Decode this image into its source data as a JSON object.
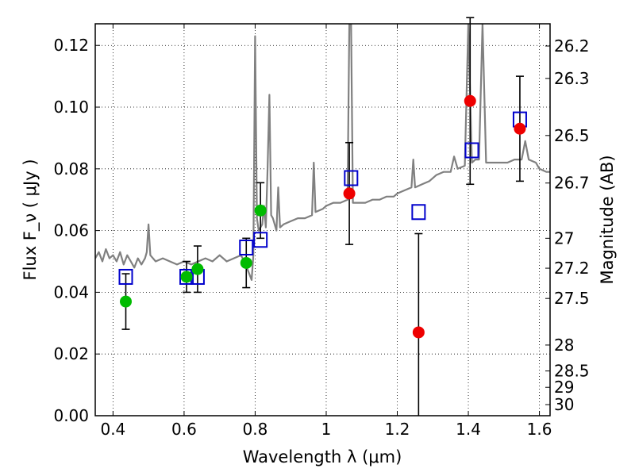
{
  "chart_data": {
    "type": "scatter",
    "xlabel": "Wavelength  λ (μm)",
    "ylabel_left": "Flux  F_ν  ( μJy )",
    "ylabel_right": "Magnitude (AB)",
    "xlim": [
      0.35,
      1.63
    ],
    "ylim": [
      0.0,
      0.127
    ],
    "grid": true,
    "x_ticks": [
      {
        "value": 0.4,
        "label": "0.4"
      },
      {
        "value": 0.6,
        "label": "0.6"
      },
      {
        "value": 0.8,
        "label": "0.8"
      },
      {
        "value": 1.0,
        "label": "1"
      },
      {
        "value": 1.2,
        "label": "1.2"
      },
      {
        "value": 1.4,
        "label": "1.4"
      },
      {
        "value": 1.6,
        "label": "1.6"
      }
    ],
    "y_ticks": [
      {
        "value": 0.0,
        "label": "0.00"
      },
      {
        "value": 0.02,
        "label": "0.02"
      },
      {
        "value": 0.04,
        "label": "0.04"
      },
      {
        "value": 0.06,
        "label": "0.06"
      },
      {
        "value": 0.08,
        "label": "0.08"
      },
      {
        "value": 0.1,
        "label": "0.10"
      },
      {
        "value": 0.12,
        "label": "0.12"
      }
    ],
    "right_ticks": [
      {
        "flux": 0.1198,
        "label": "26.2"
      },
      {
        "flux": 0.1093,
        "label": "26.3"
      },
      {
        "flux": 0.0908,
        "label": "26.5"
      },
      {
        "flux": 0.0754,
        "label": "26.7"
      },
      {
        "flux": 0.0575,
        "label": "27"
      },
      {
        "flux": 0.0478,
        "label": "27.2"
      },
      {
        "flux": 0.038,
        "label": "27.5"
      },
      {
        "flux": 0.0229,
        "label": "28"
      },
      {
        "flux": 0.0145,
        "label": "28.5"
      },
      {
        "flux": 0.0092,
        "label": "29"
      },
      {
        "flux": 0.0036,
        "label": "30"
      }
    ],
    "series": [
      {
        "color": "#808080",
        "points": [
          [
            0.35,
            0.051
          ],
          [
            0.36,
            0.053
          ],
          [
            0.37,
            0.05
          ],
          [
            0.38,
            0.054
          ],
          [
            0.39,
            0.051
          ],
          [
            0.4,
            0.052
          ],
          [
            0.41,
            0.05
          ],
          [
            0.42,
            0.053
          ],
          [
            0.43,
            0.049
          ],
          [
            0.44,
            0.052
          ],
          [
            0.45,
            0.05
          ],
          [
            0.46,
            0.048
          ],
          [
            0.47,
            0.051
          ],
          [
            0.48,
            0.049
          ],
          [
            0.49,
            0.051
          ],
          [
            0.495,
            0.053
          ],
          [
            0.5,
            0.062
          ],
          [
            0.505,
            0.052
          ],
          [
            0.52,
            0.05
          ],
          [
            0.54,
            0.051
          ],
          [
            0.56,
            0.05
          ],
          [
            0.58,
            0.049
          ],
          [
            0.6,
            0.05
          ],
          [
            0.62,
            0.049
          ],
          [
            0.64,
            0.05
          ],
          [
            0.66,
            0.051
          ],
          [
            0.68,
            0.05
          ],
          [
            0.7,
            0.052
          ],
          [
            0.72,
            0.05
          ],
          [
            0.74,
            0.051
          ],
          [
            0.76,
            0.052
          ],
          [
            0.77,
            0.05
          ],
          [
            0.78,
            0.047
          ],
          [
            0.79,
            0.044
          ],
          [
            0.795,
            0.052
          ],
          [
            0.8,
            0.123
          ],
          [
            0.805,
            0.064
          ],
          [
            0.81,
            0.06
          ],
          [
            0.82,
            0.062
          ],
          [
            0.825,
            0.068
          ],
          [
            0.83,
            0.061
          ],
          [
            0.835,
            0.08
          ],
          [
            0.84,
            0.104
          ],
          [
            0.845,
            0.065
          ],
          [
            0.85,
            0.064
          ],
          [
            0.86,
            0.06
          ],
          [
            0.865,
            0.074
          ],
          [
            0.87,
            0.061
          ],
          [
            0.88,
            0.062
          ],
          [
            0.9,
            0.063
          ],
          [
            0.92,
            0.064
          ],
          [
            0.94,
            0.064
          ],
          [
            0.96,
            0.065
          ],
          [
            0.965,
            0.082
          ],
          [
            0.97,
            0.066
          ],
          [
            0.99,
            0.067
          ],
          [
            1.0,
            0.068
          ],
          [
            1.02,
            0.069
          ],
          [
            1.04,
            0.069
          ],
          [
            1.06,
            0.07
          ],
          [
            1.065,
            0.127
          ],
          [
            1.07,
            0.127
          ],
          [
            1.075,
            0.069
          ],
          [
            1.09,
            0.069
          ],
          [
            1.11,
            0.069
          ],
          [
            1.13,
            0.07
          ],
          [
            1.15,
            0.07
          ],
          [
            1.17,
            0.071
          ],
          [
            1.19,
            0.071
          ],
          [
            1.2,
            0.072
          ],
          [
            1.22,
            0.073
          ],
          [
            1.24,
            0.074
          ],
          [
            1.245,
            0.083
          ],
          [
            1.25,
            0.074
          ],
          [
            1.27,
            0.075
          ],
          [
            1.29,
            0.076
          ],
          [
            1.31,
            0.078
          ],
          [
            1.33,
            0.079
          ],
          [
            1.35,
            0.079
          ],
          [
            1.36,
            0.084
          ],
          [
            1.37,
            0.08
          ],
          [
            1.39,
            0.081
          ],
          [
            1.4,
            0.127
          ],
          [
            1.41,
            0.082
          ],
          [
            1.42,
            0.083
          ],
          [
            1.43,
            0.083
          ],
          [
            1.44,
            0.127
          ],
          [
            1.45,
            0.082
          ],
          [
            1.47,
            0.082
          ],
          [
            1.49,
            0.082
          ],
          [
            1.51,
            0.082
          ],
          [
            1.53,
            0.083
          ],
          [
            1.55,
            0.083
          ],
          [
            1.56,
            0.089
          ],
          [
            1.57,
            0.083
          ],
          [
            1.59,
            0.082
          ],
          [
            1.6,
            0.08
          ],
          [
            1.62,
            0.079
          ],
          [
            1.63,
            0.079
          ]
        ]
      },
      {
        "color": "#0000cc",
        "points": [
          [
            0.436,
            0.045
          ],
          [
            0.607,
            0.045
          ],
          [
            0.638,
            0.045
          ],
          [
            0.775,
            0.0545
          ],
          [
            0.815,
            0.057
          ],
          [
            1.07,
            0.077
          ],
          [
            1.26,
            0.066
          ],
          [
            1.41,
            0.086
          ],
          [
            1.545,
            0.096
          ]
        ]
      },
      {
        "color": "#00bb00",
        "points": [
          {
            "x": 0.436,
            "y": 0.037,
            "err": 0.009
          },
          {
            "x": 0.607,
            "y": 0.045,
            "err": 0.005
          },
          {
            "x": 0.638,
            "y": 0.0475,
            "err": 0.0075
          },
          {
            "x": 0.775,
            "y": 0.0495,
            "err": 0.008
          },
          {
            "x": 0.815,
            "y": 0.0665,
            "err": 0.009
          }
        ]
      },
      {
        "color": "#ee0000",
        "points": [
          {
            "x": 1.065,
            "y": 0.072,
            "err": 0.0165
          },
          {
            "x": 1.26,
            "y": 0.027,
            "err": 0.032
          },
          {
            "x": 1.405,
            "y": 0.102,
            "err": 0.027
          },
          {
            "x": 1.545,
            "y": 0.093,
            "err": 0.017
          }
        ]
      }
    ]
  }
}
